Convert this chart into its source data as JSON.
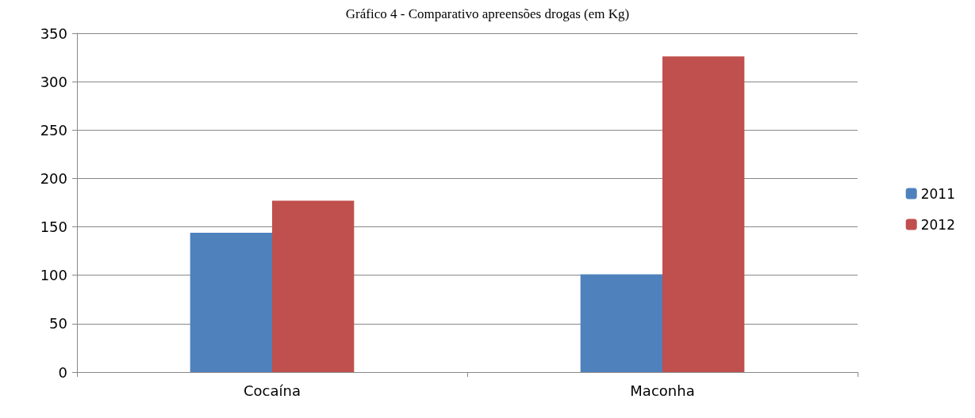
{
  "chart_data": {
    "type": "bar",
    "title": "Gráfico 4 - Comparativo apreensões drogas (em Kg)",
    "categories": [
      "Cocaína",
      "Maconha"
    ],
    "series": [
      {
        "name": "2011",
        "color": "#4f81bd",
        "values": [
          144,
          101
        ]
      },
      {
        "name": "2012",
        "color": "#c0504d",
        "values": [
          177,
          326
        ]
      }
    ],
    "ylim": [
      0,
      350
    ],
    "yticks": [
      0,
      50,
      100,
      150,
      200,
      250,
      300,
      350
    ],
    "grid": "y",
    "legend": "right"
  }
}
